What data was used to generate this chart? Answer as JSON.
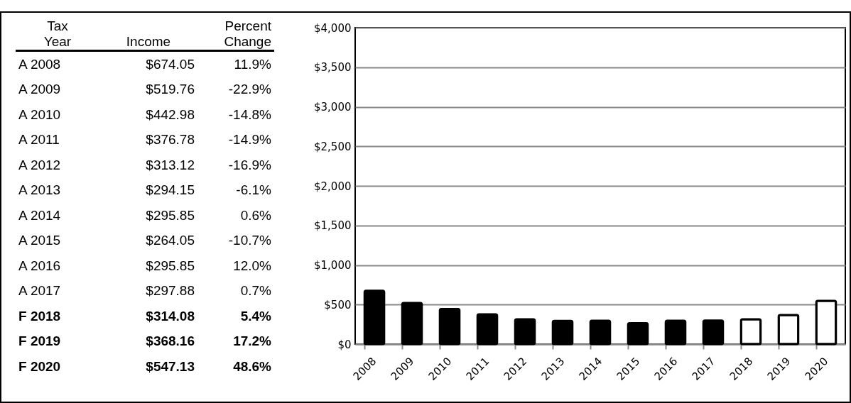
{
  "chart_data": {
    "type": "bar",
    "categories": [
      "2008",
      "2009",
      "2010",
      "2011",
      "2012",
      "2013",
      "2014",
      "2015",
      "2016",
      "2017",
      "2018",
      "2019",
      "2020"
    ],
    "values": [
      674.05,
      519.76,
      442.98,
      376.78,
      313.12,
      294.15,
      295.85,
      264.05,
      295.85,
      297.88,
      314.08,
      368.16,
      547.13
    ],
    "colors": [
      "#000000",
      "#000000",
      "#000000",
      "#000000",
      "#000000",
      "#000000",
      "#000000",
      "#000000",
      "#000000",
      "#000000",
      "#ffffff",
      "#ffffff",
      "#ffffff"
    ],
    "ylim": [
      0,
      4000
    ],
    "yticks": [
      {
        "value": 0,
        "label": "$0"
      },
      {
        "value": 500,
        "label": "$500"
      },
      {
        "value": 1000,
        "label": "$1,000"
      },
      {
        "value": 1500,
        "label": "$1,500"
      },
      {
        "value": 2000,
        "label": "$2,000"
      },
      {
        "value": 2500,
        "label": "$2,500"
      },
      {
        "value": 3000,
        "label": "$3,000"
      },
      {
        "value": 3500,
        "label": "$3,500"
      },
      {
        "value": 4000,
        "label": "$4,000"
      }
    ],
    "grid": "y",
    "annotations": [
      "Tax",
      "Year",
      "Income",
      "Percent",
      "Change",
      "A 2008",
      "A 2009",
      "A 2010",
      "A 2011",
      "A 2012",
      "A 2013",
      "A 2014",
      "A 2015",
      "A 2016",
      "A 2017",
      "F 2018",
      "F 2019",
      "F 2020",
      "$674.05",
      "$519.76",
      "$442.98",
      "$376.78",
      "$313.12",
      "$294.15",
      "$295.85",
      "$264.05",
      "$295.85",
      "$297.88",
      "$314.08",
      "$368.16",
      "$547.13",
      "11.9%",
      "-22.9%",
      "-14.8%",
      "-14.9%",
      "-16.9%",
      "-6.1%",
      "0.6%",
      "-10.7%",
      "12.0%",
      "0.7%",
      "5.4%",
      "17.2%",
      "48.6%"
    ]
  }
}
